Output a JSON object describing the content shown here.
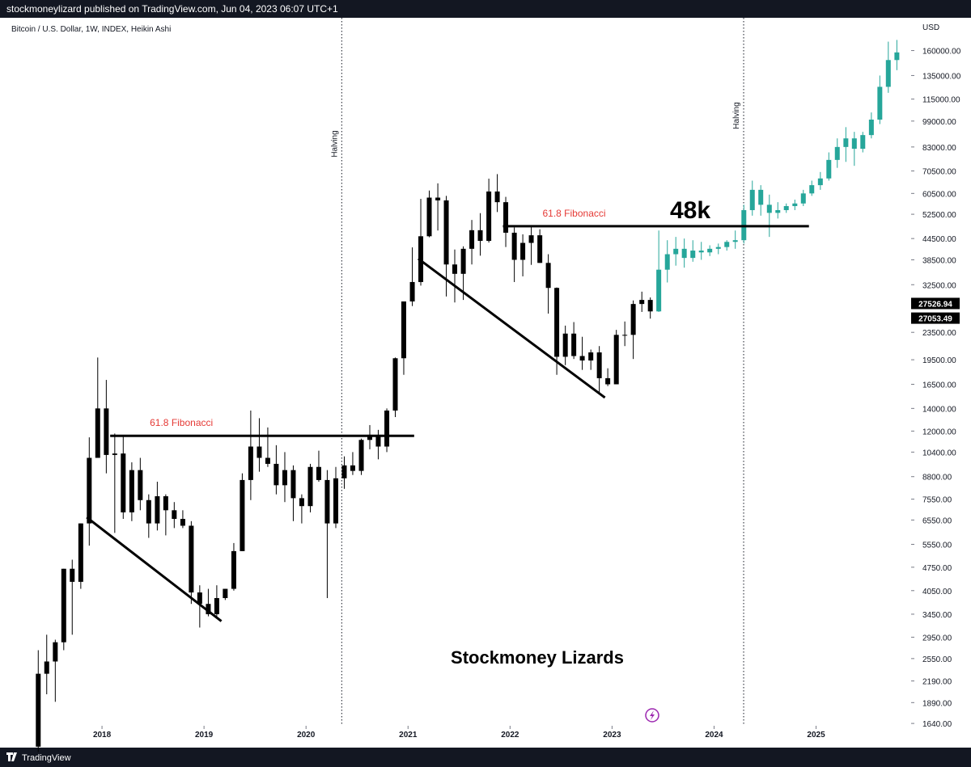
{
  "header": {
    "text": "stockmoneylizard published on TradingView.com, Jun 04, 2023 06:07 UTC+1"
  },
  "footer": {
    "brand": "TradingView"
  },
  "chart_data": {
    "type": "candlestick",
    "title": "Bitcoin / U.S. Dollar, 1W, INDEX, Heikin Ashi",
    "y_unit": "USD",
    "log_scale": true,
    "xlim": [
      2017.0,
      2025.9
    ],
    "xticks": [
      2018,
      2019,
      2020,
      2021,
      2022,
      2023,
      2024,
      2025
    ],
    "ylim": [
      1614,
      200000
    ],
    "yticks": [
      {
        "value": 160000,
        "label": "160000.00"
      },
      {
        "value": 135000,
        "label": "135000.00"
      },
      {
        "value": 115000,
        "label": "115000.00"
      },
      {
        "value": 99000,
        "label": "99000.00"
      },
      {
        "value": 83000,
        "label": "83000.00"
      },
      {
        "value": 70500,
        "label": "70500.00"
      },
      {
        "value": 60500,
        "label": "60500.00"
      },
      {
        "value": 52500,
        "label": "52500.00"
      },
      {
        "value": 44500,
        "label": "44500.00"
      },
      {
        "value": 38500,
        "label": "38500.00"
      },
      {
        "value": 32500,
        "label": "32500.00"
      },
      {
        "value": 23500,
        "label": "23500.00"
      },
      {
        "value": 19500,
        "label": "19500.00"
      },
      {
        "value": 16500,
        "label": "16500.00"
      },
      {
        "value": 14000,
        "label": "14000.00"
      },
      {
        "value": 12000,
        "label": "12000.00"
      },
      {
        "value": 10400,
        "label": "10400.00"
      },
      {
        "value": 8800,
        "label": "8800.00"
      },
      {
        "value": 7550,
        "label": "7550.00"
      },
      {
        "value": 6550,
        "label": "6550.00"
      },
      {
        "value": 5550,
        "label": "5550.00"
      },
      {
        "value": 4750,
        "label": "4750.00"
      },
      {
        "value": 4050,
        "label": "4050.00"
      },
      {
        "value": 3450,
        "label": "3450.00"
      },
      {
        "value": 2950,
        "label": "2950.00"
      },
      {
        "value": 2550,
        "label": "2550.00"
      },
      {
        "value": 2190,
        "label": "2190.00"
      },
      {
        "value": 1890,
        "label": "1890.00"
      },
      {
        "value": 1640,
        "label": "1640.00"
      }
    ],
    "price_labels": [
      27526.94,
      27053.49
    ],
    "series": [
      {
        "color": "#000000",
        "x": [
          2017.375,
          2017.458,
          2017.542,
          2017.625,
          2017.708,
          2017.792,
          2017.875,
          2017.958,
          2018.042,
          2018.125,
          2018.208,
          2018.292,
          2018.375,
          2018.458,
          2018.542,
          2018.625,
          2018.708,
          2018.792,
          2018.875,
          2018.958,
          2019.042,
          2019.125,
          2019.208,
          2019.292,
          2019.375,
          2019.458,
          2019.542,
          2019.625,
          2019.708,
          2019.792,
          2019.875,
          2019.958,
          2020.042,
          2020.125,
          2020.208,
          2020.292,
          2020.375,
          2020.458,
          2020.542,
          2020.625,
          2020.708,
          2020.792,
          2020.875,
          2020.958,
          2021.042,
          2021.125,
          2021.208,
          2021.292,
          2021.375,
          2021.458,
          2021.542,
          2021.625,
          2021.708,
          2021.792,
          2021.875,
          2021.958,
          2022.042,
          2022.125,
          2022.208,
          2022.292,
          2022.375,
          2022.458,
          2022.542,
          2022.625,
          2022.708,
          2022.792,
          2022.875,
          2022.958,
          2023.042,
          2023.125,
          2023.208,
          2023.292,
          2023.375
        ],
        "open": [
          1400,
          2300,
          2500,
          2850,
          4700,
          4300,
          6400,
          10000,
          14000,
          10200,
          10300,
          6900,
          9200,
          7500,
          6400,
          7700,
          7000,
          6600,
          6300,
          4000,
          3700,
          3450,
          3850,
          4100,
          5300,
          8600,
          10800,
          10000,
          9600,
          8300,
          9200,
          7600,
          7200,
          9400,
          8600,
          6400,
          8700,
          9500,
          9150,
          11300,
          11700,
          10800,
          13800,
          19700,
          29000,
          33100,
          45200,
          58800,
          57700,
          37300,
          35000,
          41500,
          47100,
          43800,
          61300,
          57000,
          46300,
          38500,
          43200,
          45500,
          37700,
          31800,
          19900,
          23300,
          20000,
          19400,
          20500,
          17200,
          16500,
          23100,
          23100,
          28500,
          29300
        ],
        "high": [
          2700,
          3000,
          2900,
          4700,
          5000,
          6400,
          11500,
          19800,
          17000,
          11800,
          11600,
          9700,
          10000,
          7800,
          8500,
          7800,
          7400,
          7000,
          6500,
          4200,
          4100,
          4200,
          4100,
          5600,
          9000,
          13800,
          13100,
          12300,
          10900,
          10400,
          9500,
          7800,
          9600,
          10500,
          9200,
          9400,
          10100,
          10400,
          11400,
          12500,
          12100,
          14000,
          19800,
          29000,
          41900,
          58300,
          61700,
          64800,
          59500,
          41300,
          42200,
          50500,
          52900,
          66900,
          69000,
          59100,
          48000,
          45800,
          48200,
          47400,
          40000,
          31900,
          24600,
          25200,
          22800,
          20900,
          21400,
          18400,
          23900,
          25300,
          29200,
          31000,
          29800
        ],
        "low": [
          1350,
          2000,
          1900,
          2700,
          3000,
          4100,
          5500,
          10000,
          9000,
          6000,
          6600,
          6500,
          7000,
          5800,
          6100,
          5900,
          6200,
          6200,
          3700,
          3150,
          3400,
          3400,
          3800,
          4050,
          5300,
          7500,
          9100,
          9400,
          7800,
          7400,
          6500,
          6400,
          6900,
          8500,
          3850,
          6200,
          8100,
          8900,
          8900,
          10600,
          9900,
          10400,
          13200,
          17600,
          28100,
          32300,
          44900,
          47000,
          30000,
          28800,
          29300,
          37300,
          39600,
          43300,
          53300,
          42000,
          33100,
          34400,
          37200,
          37700,
          26700,
          17600,
          18800,
          19600,
          18200,
          18200,
          15500,
          16300,
          16500,
          21400,
          19600,
          27000,
          25800
        ],
        "close": [
          2300,
          2500,
          2850,
          4700,
          4300,
          6400,
          10000,
          14000,
          10200,
          10300,
          6900,
          9200,
          7500,
          6400,
          7700,
          7000,
          6600,
          6300,
          4000,
          3700,
          3450,
          3850,
          4100,
          5300,
          8600,
          10800,
          10000,
          9600,
          8300,
          9200,
          7600,
          7200,
          9400,
          8600,
          6400,
          8700,
          9500,
          9150,
          11300,
          11700,
          10800,
          13800,
          19700,
          29000,
          33100,
          45200,
          58800,
          57700,
          37300,
          35000,
          41500,
          47100,
          43800,
          61300,
          57000,
          46300,
          38500,
          43200,
          45500,
          37700,
          31800,
          19900,
          23300,
          20000,
          19400,
          20500,
          17200,
          16500,
          23100,
          23100,
          28500,
          29300,
          27100
        ]
      },
      {
        "color": "#26a69a",
        "x": [
          2023.458,
          2023.542,
          2023.625,
          2023.708,
          2023.792,
          2023.875,
          2023.958,
          2024.042,
          2024.125,
          2024.208,
          2024.292,
          2024.375,
          2024.458,
          2024.542,
          2024.625,
          2024.708,
          2024.792,
          2024.875,
          2024.958,
          2025.042,
          2025.125,
          2025.208,
          2025.292,
          2025.375,
          2025.458,
          2025.542,
          2025.625,
          2025.708,
          2025.792
        ],
        "open": [
          27100,
          36000,
          40000,
          41500,
          39000,
          41000,
          40500,
          41500,
          42000,
          43500,
          44000,
          54000,
          62000,
          56000,
          53000,
          54000,
          55500,
          56500,
          60500,
          64000,
          67000,
          76000,
          83000,
          88000,
          82000,
          90000,
          100000,
          125000,
          150000
        ],
        "high": [
          47000,
          44000,
          45000,
          44500,
          44000,
          43500,
          42500,
          43000,
          44000,
          47000,
          56000,
          66000,
          64000,
          60000,
          57000,
          56500,
          58000,
          62000,
          66000,
          70000,
          80000,
          88000,
          95000,
          92000,
          92000,
          105000,
          135000,
          170000,
          172000
        ],
        "low": [
          27000,
          33000,
          37000,
          36500,
          38000,
          38500,
          39500,
          40000,
          41000,
          41500,
          43000,
          52000,
          52000,
          45000,
          51000,
          53000,
          54000,
          55500,
          59500,
          62000,
          66000,
          72000,
          75000,
          73000,
          80000,
          88000,
          97000,
          120000,
          140000
        ],
        "close": [
          36000,
          40000,
          41500,
          39000,
          41000,
          40500,
          41500,
          42000,
          43500,
          44000,
          54000,
          62000,
          56000,
          53000,
          54000,
          55500,
          56500,
          60500,
          64000,
          67000,
          76000,
          83000,
          88000,
          82000,
          90000,
          100000,
          125000,
          150000,
          158000
        ]
      }
    ],
    "trendlines": [
      {
        "x": [
          2017.85,
          2019.17
        ],
        "y": [
          6670,
          3290
        ]
      },
      {
        "x": [
          2021.1,
          2022.93
        ],
        "y": [
          38800,
          15070
        ]
      }
    ],
    "fib_lines": [
      {
        "label": "61.8 Fibonacci",
        "x": [
          2018.08,
          2021.06
        ],
        "value": 11620
      },
      {
        "label": "61.8 Fibonacci",
        "x": [
          2021.93,
          2024.93
        ],
        "value": 48400
      }
    ],
    "level_annotation": "48k",
    "halvings": [
      {
        "x": 2020.35,
        "label": "Halving"
      },
      {
        "x": 2024.29,
        "label": "Halving"
      }
    ],
    "watermark": "Stockmoney Lizards"
  }
}
